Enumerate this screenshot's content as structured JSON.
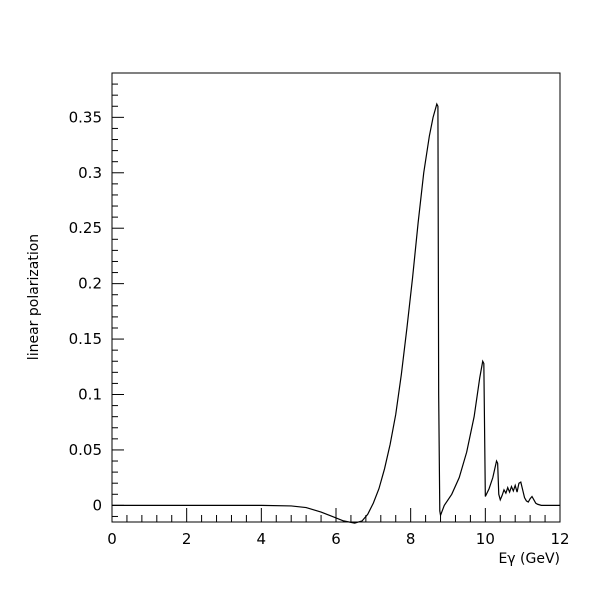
{
  "chart_data": {
    "type": "line",
    "title": "",
    "xlabel": "Eγ (GeV)",
    "ylabel": "linear polarization",
    "xlim": [
      0,
      12
    ],
    "ylim": [
      -0.015,
      0.39
    ],
    "grid": false,
    "legend": "none",
    "x_ticks": [
      {
        "value": 0,
        "label": "0"
      },
      {
        "value": 2,
        "label": "2"
      },
      {
        "value": 4,
        "label": "4"
      },
      {
        "value": 6,
        "label": "6"
      },
      {
        "value": 8,
        "label": "8"
      },
      {
        "value": 10,
        "label": "10"
      },
      {
        "value": 12,
        "label": "12"
      }
    ],
    "y_ticks": [
      {
        "value": 0,
        "label": "0"
      },
      {
        "value": 0.05,
        "label": "0.05"
      },
      {
        "value": 0.1,
        "label": "0.1"
      },
      {
        "value": 0.15,
        "label": "0.15"
      },
      {
        "value": 0.2,
        "label": "0.2"
      },
      {
        "value": 0.25,
        "label": "0.25"
      },
      {
        "value": 0.3,
        "label": "0.3"
      },
      {
        "value": 0.35,
        "label": "0.35"
      }
    ],
    "series": [
      {
        "color": "#000000",
        "x": [
          0,
          2,
          4,
          4.8,
          5.2,
          5.6,
          5.9,
          6.2,
          6.5,
          6.7,
          6.85,
          7.0,
          7.15,
          7.3,
          7.45,
          7.6,
          7.75,
          7.9,
          8.05,
          8.2,
          8.35,
          8.5,
          8.6,
          8.7,
          8.73,
          8.75,
          8.78,
          8.8,
          8.9,
          9.1,
          9.3,
          9.5,
          9.7,
          9.85,
          9.93,
          9.96,
          10.0,
          10.1,
          10.2,
          10.3,
          10.33,
          10.36,
          10.4,
          10.45,
          10.5,
          10.55,
          10.6,
          10.65,
          10.7,
          10.75,
          10.8,
          10.85,
          10.9,
          10.95,
          11.0,
          11.05,
          11.1,
          11.15,
          11.2,
          11.25,
          11.3,
          11.35,
          11.4,
          11.5,
          11.7,
          12.0
        ],
        "y": [
          0,
          0,
          0,
          -0.0005,
          -0.002,
          -0.006,
          -0.01,
          -0.014,
          -0.016,
          -0.014,
          -0.008,
          0.002,
          0.015,
          0.033,
          0.055,
          0.082,
          0.118,
          0.16,
          0.205,
          0.255,
          0.3,
          0.333,
          0.35,
          0.362,
          0.36,
          0.1,
          -0.005,
          -0.009,
          0.0,
          0.01,
          0.025,
          0.048,
          0.08,
          0.115,
          0.13,
          0.128,
          0.008,
          0.015,
          0.025,
          0.04,
          0.038,
          0.01,
          0.005,
          0.009,
          0.014,
          0.011,
          0.016,
          0.012,
          0.017,
          0.013,
          0.018,
          0.012,
          0.02,
          0.021,
          0.014,
          0.007,
          0.004,
          0.003,
          0.006,
          0.008,
          0.005,
          0.002,
          0.001,
          0.0,
          0.0,
          0.0
        ]
      }
    ]
  }
}
